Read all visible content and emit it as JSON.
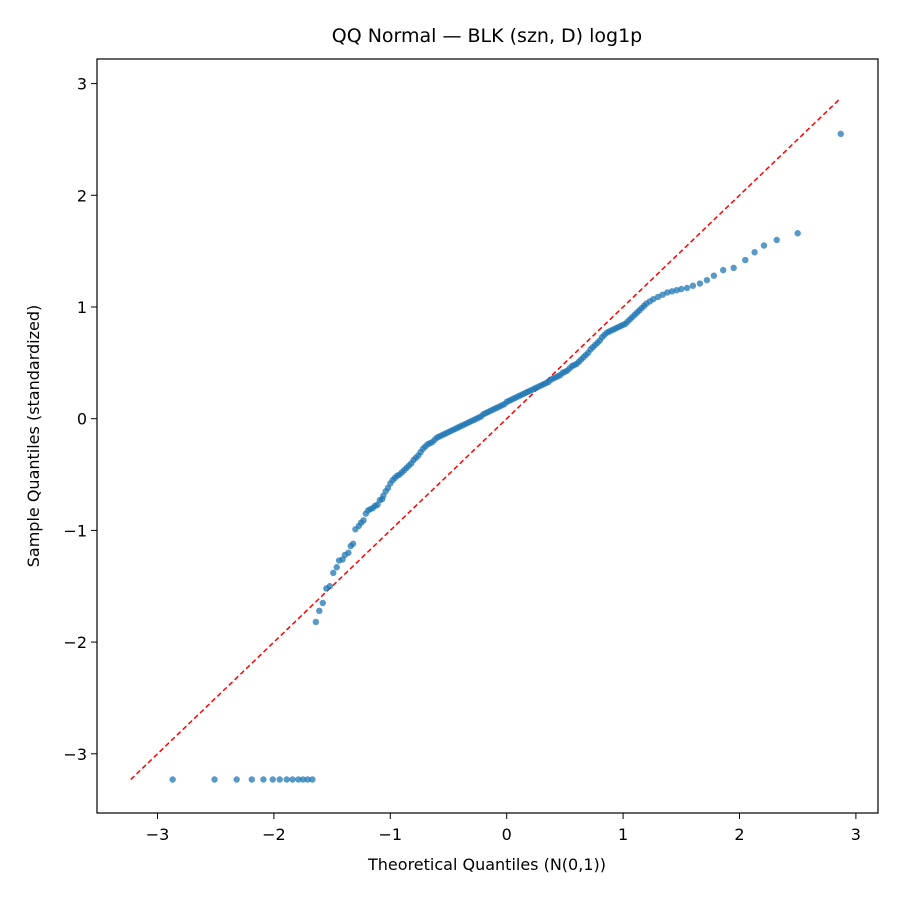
{
  "chart_data": {
    "type": "scatter",
    "title": "QQ Normal — BLK (szn, D) log1p",
    "xlabel": "Theoretical Quantiles (N(0,1))",
    "ylabel": "Sample Quantiles (standardized)",
    "xlim": [
      -3.52,
      3.19
    ],
    "ylim": [
      -3.53,
      3.22
    ],
    "xticks": [
      -3,
      -2,
      -1,
      0,
      1,
      2,
      3
    ],
    "xtick_labels": [
      "−3",
      "−2",
      "−1",
      "0",
      "1",
      "2",
      "3"
    ],
    "yticks": [
      -3,
      -2,
      -1,
      0,
      1,
      2,
      3
    ],
    "ytick_labels": [
      "−3",
      "−2",
      "−1",
      "0",
      "1",
      "2",
      "3"
    ],
    "grid": false,
    "colors": {
      "points": "#1f77b4",
      "reference_line": "#ff0000"
    },
    "reference_line": {
      "slope": 1.0,
      "intercept": 0.0,
      "x_start": -3.23,
      "x_end": 2.87,
      "style": "dashed"
    },
    "series": [
      {
        "x": [
          -2.87,
          -2.51,
          -2.32,
          -2.19,
          -2.09,
          -2.01,
          -1.95,
          -1.89,
          -1.84,
          -1.79,
          -1.75,
          -1.71,
          -1.67,
          -1.64,
          -1.61,
          -1.58,
          -1.55,
          -1.52,
          -1.49,
          -1.46,
          -1.44,
          -1.41,
          -1.39,
          -1.36,
          -1.34,
          -1.32,
          -1.3,
          -1.27,
          -1.25,
          -1.23,
          -1.21,
          -1.19,
          -1.17,
          -1.15,
          -1.13,
          -1.11,
          -1.09,
          -1.07,
          -1.06,
          -1.04,
          -1.02,
          -1.0,
          -0.98,
          -0.96,
          -0.94,
          -0.92,
          -0.9,
          -0.88,
          -0.86,
          -0.84,
          -0.82,
          -0.8,
          -0.78,
          -0.76,
          -0.74,
          -0.72,
          -0.7,
          -0.68,
          -0.66,
          -0.64,
          -0.62,
          -0.6,
          -0.58,
          -0.56,
          -0.54,
          -0.52,
          -0.5,
          -0.48,
          -0.46,
          -0.44,
          -0.42,
          -0.4,
          -0.38,
          -0.36,
          -0.34,
          -0.32,
          -0.3,
          -0.28,
          -0.26,
          -0.24,
          -0.22,
          -0.2,
          -0.18,
          -0.16,
          -0.14,
          -0.12,
          -0.1,
          -0.08,
          -0.06,
          -0.04,
          -0.02,
          0.0,
          0.02,
          0.04,
          0.06,
          0.08,
          0.1,
          0.12,
          0.14,
          0.16,
          0.18,
          0.2,
          0.22,
          0.24,
          0.26,
          0.28,
          0.3,
          0.32,
          0.34,
          0.36,
          0.38,
          0.4,
          0.42,
          0.44,
          0.46,
          0.48,
          0.5,
          0.52,
          0.54,
          0.56,
          0.58,
          0.6,
          0.62,
          0.64,
          0.66,
          0.68,
          0.7,
          0.72,
          0.74,
          0.76,
          0.78,
          0.8,
          0.82,
          0.84,
          0.86,
          0.88,
          0.9,
          0.92,
          0.94,
          0.96,
          0.98,
          1.0,
          1.02,
          1.04,
          1.06,
          1.08,
          1.1,
          1.12,
          1.14,
          1.16,
          1.18,
          1.2,
          1.23,
          1.26,
          1.3,
          1.34,
          1.38,
          1.42,
          1.46,
          1.5,
          1.55,
          1.6,
          1.66,
          1.72,
          1.78,
          1.86,
          1.95,
          2.05,
          2.13,
          2.21,
          2.32,
          2.5,
          2.87
        ],
        "y": [
          -3.23,
          -3.23,
          -3.23,
          -3.23,
          -3.23,
          -3.23,
          -3.23,
          -3.23,
          -3.23,
          -3.23,
          -3.23,
          -3.23,
          -3.23,
          -1.82,
          -1.72,
          -1.65,
          -1.52,
          -1.5,
          -1.38,
          -1.33,
          -1.27,
          -1.26,
          -1.22,
          -1.2,
          -1.14,
          -1.12,
          -0.99,
          -0.96,
          -0.93,
          -0.91,
          -0.85,
          -0.82,
          -0.81,
          -0.8,
          -0.78,
          -0.77,
          -0.73,
          -0.72,
          -0.69,
          -0.65,
          -0.62,
          -0.58,
          -0.55,
          -0.53,
          -0.51,
          -0.5,
          -0.48,
          -0.46,
          -0.44,
          -0.42,
          -0.4,
          -0.37,
          -0.35,
          -0.33,
          -0.3,
          -0.27,
          -0.25,
          -0.23,
          -0.22,
          -0.21,
          -0.19,
          -0.17,
          -0.16,
          -0.15,
          -0.14,
          -0.13,
          -0.12,
          -0.11,
          -0.1,
          -0.09,
          -0.08,
          -0.07,
          -0.06,
          -0.05,
          -0.04,
          -0.03,
          -0.02,
          -0.01,
          0.0,
          0.01,
          0.02,
          0.04,
          0.05,
          0.06,
          0.07,
          0.08,
          0.09,
          0.1,
          0.11,
          0.12,
          0.13,
          0.15,
          0.16,
          0.17,
          0.18,
          0.19,
          0.2,
          0.21,
          0.22,
          0.23,
          0.24,
          0.25,
          0.26,
          0.27,
          0.28,
          0.29,
          0.3,
          0.31,
          0.32,
          0.33,
          0.35,
          0.36,
          0.37,
          0.38,
          0.39,
          0.41,
          0.42,
          0.43,
          0.45,
          0.47,
          0.48,
          0.49,
          0.51,
          0.53,
          0.55,
          0.57,
          0.59,
          0.62,
          0.64,
          0.66,
          0.68,
          0.7,
          0.73,
          0.75,
          0.77,
          0.78,
          0.79,
          0.8,
          0.81,
          0.82,
          0.83,
          0.84,
          0.85,
          0.87,
          0.89,
          0.91,
          0.93,
          0.95,
          0.97,
          0.99,
          1.01,
          1.03,
          1.05,
          1.07,
          1.09,
          1.11,
          1.13,
          1.14,
          1.15,
          1.16,
          1.17,
          1.19,
          1.21,
          1.24,
          1.28,
          1.33,
          1.35,
          1.42,
          1.49,
          1.55,
          1.6,
          1.66,
          2.55
        ]
      }
    ]
  }
}
